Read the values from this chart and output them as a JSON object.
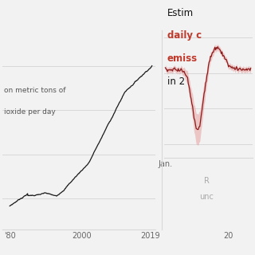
{
  "title_line1": "Estim",
  "title_line2": "daily c",
  "title_line3": "emiss",
  "title_line4": "in 2",
  "ylabel_line1": "on metric tons of",
  "ylabel_line2": "ioxide per day",
  "xtick_left_labels": [
    "'80",
    "2000",
    "2019"
  ],
  "xtick_left_positions": [
    1980,
    2000,
    2019
  ],
  "xtick_right": "Jan.",
  "xtick_right2": "20",
  "background_color": "#f2f2f2",
  "line_color_left": "#1a1a1a",
  "line_color_right": "#8b1a1a",
  "fill_color_right": "#e8a0a0",
  "range_label1": "R",
  "range_label2": "unc",
  "title_color_red": "#c0392b",
  "title_color_black": "#111111",
  "grid_color": "#d8d8d8"
}
